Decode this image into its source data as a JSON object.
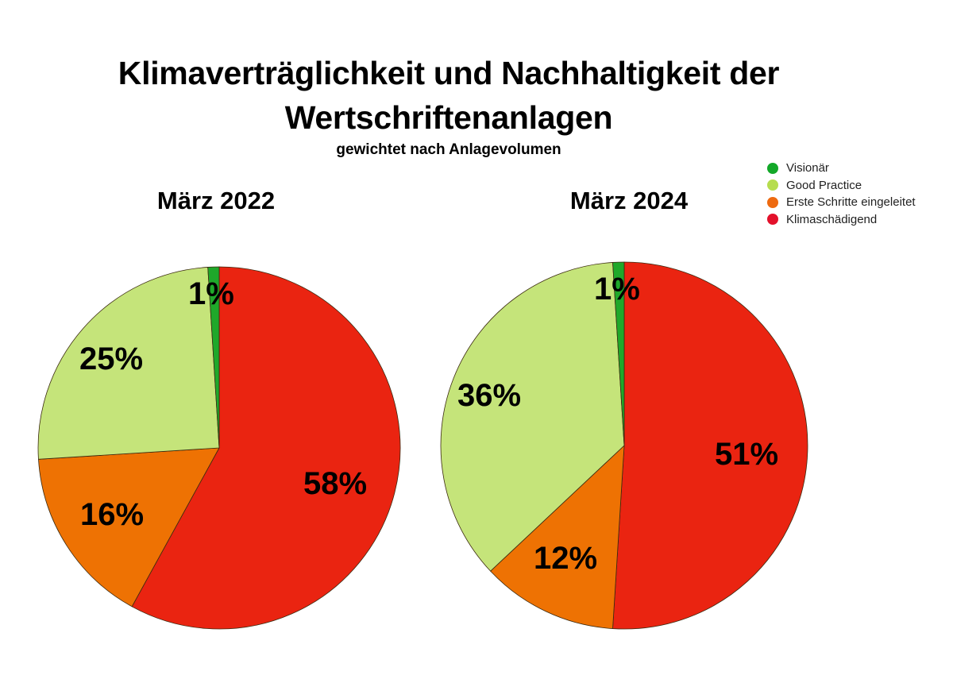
{
  "header": {
    "title_line1": "Klimaverträglichkeit und Nachhaltigkeit der",
    "title_line2": "Wertschriftenanlagen",
    "subtitle": "gewichtet nach Anlagevolumen"
  },
  "legend": [
    {
      "label": "Visionär",
      "color": "#13a829"
    },
    {
      "label": "Good Practice",
      "color": "#b6dd4e"
    },
    {
      "label": "Erste Schritte eingeleitet",
      "color": "#ee6a10"
    },
    {
      "label": "Klimaschädigend",
      "color": "#e3112b"
    }
  ],
  "pies": [
    {
      "title": "März 2022",
      "labels": {
        "visionaer": "1%",
        "good_practice": "25%",
        "erste_schritte": "16%",
        "klimaschaedigend": "58%"
      }
    },
    {
      "title": "März 2024",
      "labels": {
        "visionaer": "1%",
        "good_practice": "36%",
        "erste_schritte": "12%",
        "klimaschaedigend": "51%"
      }
    }
  ],
  "chart_data": [
    {
      "type": "pie",
      "title": "März 2022",
      "categories": [
        "Visionär",
        "Good Practice",
        "Erste Schritte eingeleitet",
        "Klimaschädigend"
      ],
      "values": [
        1,
        25,
        16,
        58
      ],
      "unit": "%",
      "colors": [
        "#1fa82a",
        "#c5e47a",
        "#ee7203",
        "#ea2411"
      ],
      "legend_position": "top-right"
    },
    {
      "type": "pie",
      "title": "März 2024",
      "categories": [
        "Visionär",
        "Good Practice",
        "Erste Schritte eingeleitet",
        "Klimaschädigend"
      ],
      "values": [
        1,
        36,
        12,
        51
      ],
      "unit": "%",
      "colors": [
        "#1fa82a",
        "#c5e47a",
        "#ee7203",
        "#ea2411"
      ],
      "legend_position": "top-right"
    }
  ]
}
